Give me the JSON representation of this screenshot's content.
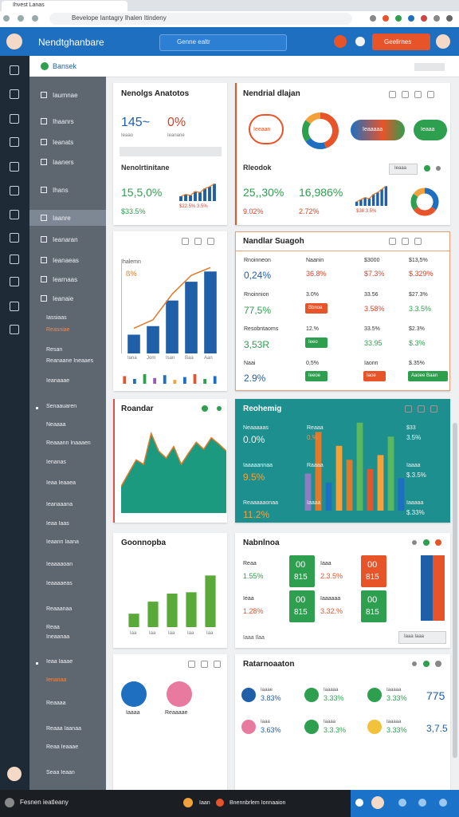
{
  "browser": {
    "tab": "Ihvest Lanas",
    "url": "Bevelope Iantagry Ihalen Itindeny"
  },
  "header": {
    "title": "Nendtghanbare",
    "search": "Genne ealtr",
    "button": "Geelirnes"
  },
  "breadcrumb": "Bansek",
  "sidebar": [
    "Iaurnnae",
    "Ihaanrs",
    "Ieanats",
    "Iaaners",
    "Ihans",
    "Iaanre",
    "Ieanaran",
    "Ieanaeas",
    "Iearnaas",
    "Ieanaie",
    "Iassiaas",
    "Reasniae",
    "Resan",
    "Reanaane Ineaaes",
    "Ieanaaae",
    "Senaauaren",
    "Neaaaa",
    "Reaaann Inaaaen",
    "Ienanas",
    "Ieaa Ieaaea",
    "Ieanaaana",
    "Ieaa Iaas",
    "Ieaann Iaana",
    "Ieaaaaoan",
    "Ieaaaaeas",
    "Reaaanaa",
    "Reaa",
    "Ineaanaa",
    "Ieaa Iaaae",
    "Ienanaa",
    "Reaaaa",
    "Reaaa Iaanaa",
    "Reaa Ieaaae",
    "Seaa Ieaan"
  ],
  "cards": [
    {
      "title": "Nenolgs Anatotos",
      "stats": [
        "145~",
        "0%"
      ],
      "stat_labels": [
        "Ieaao",
        "Ieanane"
      ],
      "subtitle": "Nenolrtinitane",
      "stats2": [
        "15,5,0%",
        "$33.5%"
      ],
      "chart_label": "$22.5% 3.5%",
      "chart": {
        "ylim": [
          0,
          100
        ],
        "values": [
          25,
          35,
          30,
          50,
          45,
          65,
          75,
          90
        ],
        "color": "#1f5fa8"
      }
    },
    {
      "title": "Nendrial dlajan",
      "pills": [
        "Ieeaan",
        "Ieaaaaa",
        "Ieaaa"
      ],
      "donut": {
        "values": [
          45,
          20,
          20,
          15
        ],
        "colors": [
          "#e8542a",
          "#1f6fc0",
          "#2e9e4f",
          "#f2a23a"
        ]
      },
      "subtitle": "Rleodok",
      "button": "Ieaaa",
      "stats": [
        "25,,30%",
        "16,986%"
      ],
      "stats_sub": [
        "9.02%",
        "2.72%"
      ],
      "chart_label": "$38 3.5%",
      "chart": {
        "ylim": [
          0,
          100
        ],
        "values": [
          20,
          30,
          40,
          35,
          55,
          65,
          80,
          95
        ],
        "color": "#1f5fa8"
      },
      "donut2": {
        "values": [
          35,
          30,
          20,
          15
        ],
        "colors": [
          "#1f6fc0",
          "#e8542a",
          "#2e9e4f",
          "#f2a23a"
        ]
      }
    },
    {
      "label": "Ihalemn",
      "badge": "ß%",
      "chart": {
        "ylim": [
          0,
          100
        ],
        "values": [
          22,
          32,
          62,
          84,
          96
        ],
        "color": "#1f5fa8",
        "line": "#e07a2a"
      },
      "x_labels": [
        "Iana",
        "Jom",
        "Isan",
        "Baa",
        "Aan"
      ],
      "mini": {
        "ylim": [
          0,
          100
        ],
        "values": [
          80,
          50,
          100,
          60,
          90,
          40,
          70,
          100,
          50,
          80
        ],
        "colors": [
          "#e8542a",
          "#1f6fc0",
          "#2e9e4f",
          "#9b59b6",
          "#1f6fc0",
          "#f2a23a",
          "#1f6fc0",
          "#e8542a",
          "#2e9e4f",
          "#1f6fc0"
        ]
      }
    },
    {
      "title": "Nandlar Suagoh",
      "rows": [
        [
          "Rnoinneon",
          "Naanin",
          "$3000",
          "$13,5%"
        ],
        [
          "0,24%",
          "36.8%",
          "$7.3%",
          "$.329%"
        ],
        [
          "Rnoinnion",
          "3.0%",
          "33.56",
          "$27.3%"
        ],
        [
          "77,5%",
          "Bbnoa",
          "3.58%",
          "3.3.5%"
        ],
        [
          "Resobntaoms",
          "12.%",
          "33.5%",
          "$2.3%"
        ],
        [
          "3,53R",
          "Ieeo",
          "33.95",
          "$.3%"
        ],
        [
          "Naai",
          "0,5%",
          "Iaonn",
          "$.35%"
        ],
        [
          "2.9%",
          "Ieeoe",
          "Iaoe",
          "Aaoee Baan"
        ]
      ]
    },
    {
      "title": "Roandar",
      "area": {
        "ylim": [
          0,
          100
        ],
        "values": [
          30,
          45,
          60,
          55,
          90,
          70,
          62,
          75,
          55,
          68,
          80,
          72,
          85,
          78,
          70
        ],
        "color": "#1b9a80",
        "line": "#e07a2a"
      }
    },
    {
      "title": "Reohemig",
      "left": [
        [
          "Neaaaaas",
          "0.0%"
        ],
        [
          "Iaaaaannaa",
          "9.5%"
        ],
        [
          "Reaaaaaonaa",
          "11.2%"
        ]
      ],
      "mid": [
        [
          "Reaaa",
          "0.%"
        ],
        [
          "Raaaa",
          ""
        ],
        [
          "Iaaaa",
          ""
        ]
      ],
      "right": [
        [
          "$33",
          "3.5%"
        ],
        [
          "Iaaaa",
          "$.3.5%"
        ],
        [
          "Iaaaaa",
          "$.33%"
        ]
      ],
      "chart": {
        "ylim": [
          0,
          100
        ],
        "values": [
          40,
          85,
          30,
          70,
          55,
          95,
          45,
          60,
          80,
          35
        ],
        "colors": [
          "#8e7cc3",
          "#e07a2a",
          "#1f6fc0",
          "#f2a23a",
          "#e07a2a",
          "#5cb85c",
          "#e8542a",
          "#f2a23a",
          "#5cb85c",
          "#1f6fc0"
        ]
      }
    },
    {
      "title": "Goonnopba",
      "chart": {
        "ylim": [
          0,
          100
        ],
        "values": [
          20,
          38,
          50,
          52,
          77
        ],
        "color": "#5aaa3a"
      },
      "x_labels": [
        "Iaa",
        "Iaa",
        "Iaa",
        "Iaa",
        "Iaa"
      ]
    },
    {
      "title": "Nabnlnoa",
      "rows": [
        [
          "Reaa",
          "1.55%",
          "00",
          "815",
          "Iaaa",
          "2.3.5%",
          "00",
          "815"
        ],
        [
          "Ieaa",
          "1.28%",
          "00",
          "815",
          "Iaaaaaa",
          "3.32.%",
          "00",
          "815"
        ]
      ],
      "footer": "Iaaa Ilaa",
      "button": "Iaaa Iaaa"
    },
    {
      "labels": [
        "Iaaaa",
        "Reaaaae"
      ]
    },
    {
      "title": "Ratarnoaaton",
      "items": [
        [
          "Iaaae",
          "3.83%"
        ],
        [
          "Iaaaaa",
          "3.33%"
        ],
        [
          "Iaaaaa",
          "3.33%"
        ],
        [
          "Iaaa",
          "3.63%"
        ],
        [
          "Iaaaa",
          "3.3.3%"
        ],
        [
          "Iaaaaa",
          "3.33%"
        ]
      ],
      "values": [
        "775",
        "3,7.5"
      ]
    }
  ],
  "taskbar": {
    "left": "Fesnen ieatleany",
    "mid": "Iaan",
    "right": "Bnennbrlem Ionnaaion"
  }
}
